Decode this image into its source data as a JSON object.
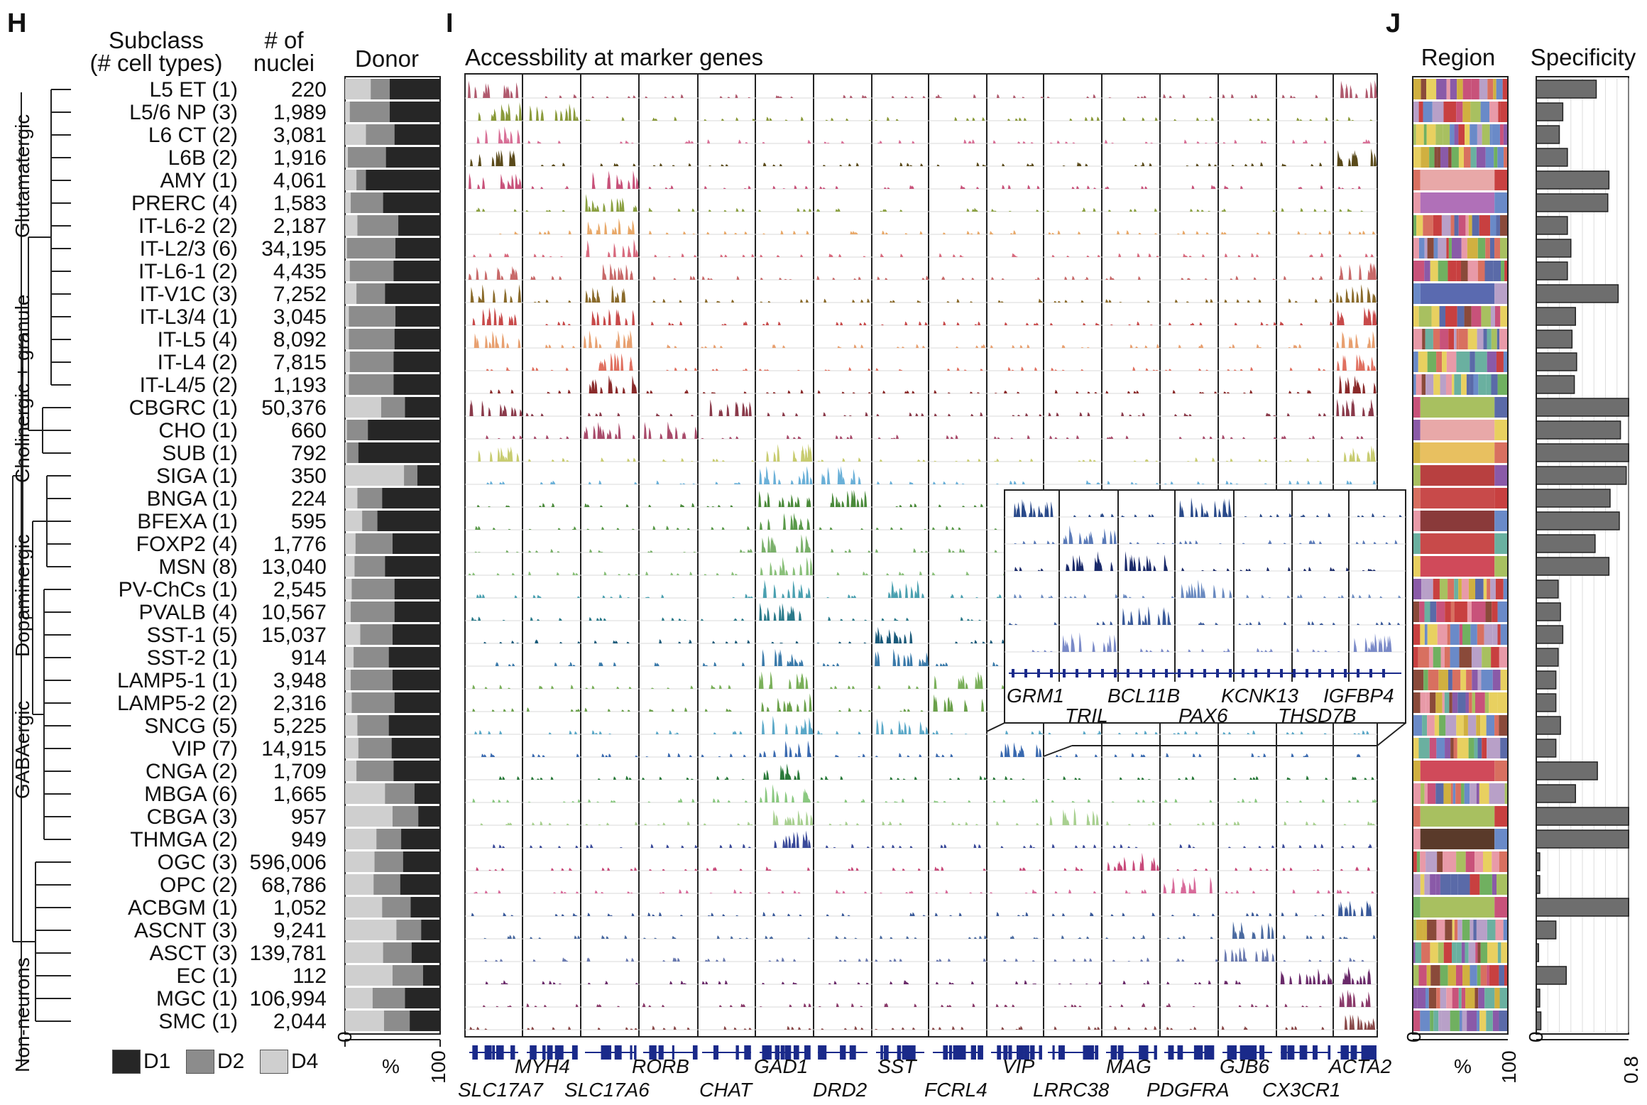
{
  "panels": {
    "h": {
      "letter": "H"
    },
    "i": {
      "letter": "I",
      "title": "Accessbility at marker genes"
    },
    "j": {
      "letter": "J"
    }
  },
  "headers": {
    "subclass_line1": "Subclass",
    "subclass_line2": "(# cell types)",
    "nuclei_line1": "# of",
    "nuclei_line2": "nuclei",
    "donor": "Donor",
    "region": "Region",
    "specificity": "Specificity"
  },
  "groups": [
    {
      "label": "Glutamatergic"
    },
    {
      "label": "Cholinergic + granule"
    },
    {
      "label": "Dopaminergic"
    },
    {
      "label": "GABAergic"
    },
    {
      "label": "Non-neurons"
    }
  ],
  "rows": [
    {
      "label": "L5 ET (1)",
      "count": "220",
      "color": "#b05a6e"
    },
    {
      "label": "L5/6 NP (3)",
      "count": "1,989",
      "color": "#8a9a3a"
    },
    {
      "label": "L6 CT (2)",
      "count": "3,081",
      "color": "#d86f96"
    },
    {
      "label": "L6B (2)",
      "count": "1,916",
      "color": "#5a4a1a"
    },
    {
      "label": "AMY (1)",
      "count": "4,061",
      "color": "#c8527a"
    },
    {
      "label": "PRERC (4)",
      "count": "1,583",
      "color": "#8aa040"
    },
    {
      "label": "IT-L6-2 (2)",
      "count": "2,187",
      "color": "#e8a868"
    },
    {
      "label": "IT-L2/3 (6)",
      "count": "34,195",
      "color": "#d86a7e"
    },
    {
      "label": "IT-L6-1 (2)",
      "count": "4,435",
      "color": "#c86a6a"
    },
    {
      "label": "IT-V1C (3)",
      "count": "7,252",
      "color": "#8a6a2a"
    },
    {
      "label": "IT-L3/4 (1)",
      "count": "3,045",
      "color": "#c84a4a"
    },
    {
      "label": "IT-L5 (4)",
      "count": "8,092",
      "color": "#e8a070"
    },
    {
      "label": "IT-L4 (2)",
      "count": "7,815",
      "color": "#e07060"
    },
    {
      "label": "IT-L4/5 (2)",
      "count": "1,193",
      "color": "#8a2a2a"
    },
    {
      "label": "CBGRC (1)",
      "count": "50,376",
      "color": "#8a3a4a"
    },
    {
      "label": "CHO (1)",
      "count": "660",
      "color": "#a84a6a"
    },
    {
      "label": "SUB (1)",
      "count": "792",
      "color": "#c8cc70"
    },
    {
      "label": "SIGA (1)",
      "count": "350",
      "color": "#6ab0d8"
    },
    {
      "label": "BNGA (1)",
      "count": "224",
      "color": "#4a8a3a"
    },
    {
      "label": "BFEXA (1)",
      "count": "595",
      "color": "#5a9a4a"
    },
    {
      "label": "FOXP2 (4)",
      "count": "1,776",
      "color": "#7ab06a"
    },
    {
      "label": "MSN (8)",
      "count": "13,040",
      "color": "#8ac07a"
    },
    {
      "label": "PV-ChCs (1)",
      "count": "2,545",
      "color": "#4aa0b0"
    },
    {
      "label": "PVALB (4)",
      "count": "10,567",
      "color": "#2a7a8a"
    },
    {
      "label": "SST-1 (5)",
      "count": "15,037",
      "color": "#1a5a7a"
    },
    {
      "label": "SST-2 (1)",
      "count": "914",
      "color": "#3a7aaa"
    },
    {
      "label": "LAMP5-1 (1)",
      "count": "3,948",
      "color": "#7ab05a"
    },
    {
      "label": "LAMP5-2 (2)",
      "count": "2,316",
      "color": "#6aa04a"
    },
    {
      "label": "SNCG (5)",
      "count": "5,225",
      "color": "#5aa8c8"
    },
    {
      "label": "VIP (7)",
      "count": "14,915",
      "color": "#3a6ab0"
    },
    {
      "label": "CNGA (2)",
      "count": "1,709",
      "color": "#2a7a3a"
    },
    {
      "label": "MBGA (6)",
      "count": "1,665",
      "color": "#8ac880"
    },
    {
      "label": "CBGA (3)",
      "count": "957",
      "color": "#a8d090"
    },
    {
      "label": "THMGA (2)",
      "count": "949",
      "color": "#3a4a9a"
    },
    {
      "label": "OGC (3)",
      "count": "596,006",
      "color": "#c84a7a"
    },
    {
      "label": "OPC (2)",
      "count": "68,786",
      "color": "#d86a9a"
    },
    {
      "label": "ACBGM (1)",
      "count": "1,052",
      "color": "#3a5a9a"
    },
    {
      "label": "ASCNT (3)",
      "count": "9,241",
      "color": "#4a6aa0"
    },
    {
      "label": "ASCT (3)",
      "count": "139,781",
      "color": "#6a7ab0"
    },
    {
      "label": "EC (1)",
      "count": "112",
      "color": "#6a2a6a"
    },
    {
      "label": "MGC (1)",
      "count": "106,994",
      "color": "#8a3a6a"
    },
    {
      "label": "SMC (1)",
      "count": "2,044",
      "color": "#8a4a4a"
    }
  ],
  "donor_chart": {
    "series": [
      {
        "name": "D4",
        "color": "#cfcfcf"
      },
      {
        "name": "D2",
        "color": "#8c8c8c"
      },
      {
        "name": "D1",
        "color": "#262626"
      }
    ],
    "fractions": [
      [
        0.27,
        0.2,
        0.53
      ],
      [
        0.05,
        0.42,
        0.53
      ],
      [
        0.22,
        0.3,
        0.48
      ],
      [
        0.03,
        0.4,
        0.57
      ],
      [
        0.12,
        0.1,
        0.78
      ],
      [
        0.06,
        0.34,
        0.6
      ],
      [
        0.13,
        0.43,
        0.44
      ],
      [
        0.02,
        0.51,
        0.47
      ],
      [
        0.05,
        0.46,
        0.49
      ],
      [
        0.12,
        0.3,
        0.58
      ],
      [
        0.04,
        0.49,
        0.47
      ],
      [
        0.04,
        0.48,
        0.48
      ],
      [
        0.05,
        0.46,
        0.49
      ],
      [
        0.04,
        0.47,
        0.49
      ],
      [
        0.38,
        0.25,
        0.37
      ],
      [
        0.02,
        0.22,
        0.76
      ],
      [
        0.02,
        0.12,
        0.86
      ],
      [
        0.62,
        0.14,
        0.24
      ],
      [
        0.13,
        0.26,
        0.61
      ],
      [
        0.18,
        0.16,
        0.66
      ],
      [
        0.11,
        0.39,
        0.5
      ],
      [
        0.1,
        0.32,
        0.58
      ],
      [
        0.07,
        0.45,
        0.48
      ],
      [
        0.06,
        0.46,
        0.48
      ],
      [
        0.16,
        0.34,
        0.5
      ],
      [
        0.09,
        0.37,
        0.54
      ],
      [
        0.06,
        0.44,
        0.5
      ],
      [
        0.07,
        0.45,
        0.48
      ],
      [
        0.13,
        0.33,
        0.54
      ],
      [
        0.14,
        0.35,
        0.51
      ],
      [
        0.12,
        0.39,
        0.49
      ],
      [
        0.42,
        0.31,
        0.27
      ],
      [
        0.5,
        0.27,
        0.23
      ],
      [
        0.33,
        0.26,
        0.41
      ],
      [
        0.31,
        0.3,
        0.39
      ],
      [
        0.3,
        0.28,
        0.42
      ],
      [
        0.39,
        0.3,
        0.31
      ],
      [
        0.54,
        0.26,
        0.2
      ],
      [
        0.4,
        0.3,
        0.3
      ],
      [
        0.5,
        0.32,
        0.18
      ],
      [
        0.29,
        0.34,
        0.37
      ],
      [
        0.41,
        0.27,
        0.32
      ]
    ],
    "xlabel": "%",
    "ticks": [
      "0",
      "100"
    ]
  },
  "legend": [
    {
      "name": "D1",
      "color": "#262626"
    },
    {
      "name": "D2",
      "color": "#8c8c8c"
    },
    {
      "name": "D4",
      "color": "#cfcfcf"
    }
  ],
  "genes": {
    "bottom_row1": [
      "MYH4",
      "RORB",
      "GAD1",
      "SST",
      "VIP",
      "MAG",
      "GJB6",
      "ACTA2"
    ],
    "bottom_row2": [
      "SLC17A7",
      "SLC17A6",
      "CHAT",
      "DRD2",
      "FCRL4",
      "LRRC38",
      "PDGFRA",
      "CX3CR1"
    ],
    "inset_row1": [
      "GRM1",
      "BCL11B",
      "KCNK13",
      "IGFBP4"
    ],
    "inset_row2": [
      "TRIL",
      "PAX6",
      "THSD7B"
    ]
  },
  "specificity": {
    "values": [
      0.52,
      0.23,
      0.2,
      0.27,
      0.63,
      0.62,
      0.27,
      0.3,
      0.27,
      0.71,
      0.34,
      0.31,
      0.35,
      0.33,
      0.81,
      0.73,
      0.83,
      0.78,
      0.64,
      0.72,
      0.51,
      0.63,
      0.19,
      0.21,
      0.23,
      0.19,
      0.17,
      0.17,
      0.21,
      0.17,
      0.53,
      0.34,
      0.81,
      0.8,
      0.03,
      0.03,
      0.81,
      0.17,
      0.02,
      0.26,
      0.03,
      0.04
    ],
    "axis_ticks": [
      "0",
      "0.8"
    ],
    "max": 0.8
  },
  "region": {
    "axis_ticks": [
      "0",
      "100"
    ],
    "xlabel": "%"
  }
}
